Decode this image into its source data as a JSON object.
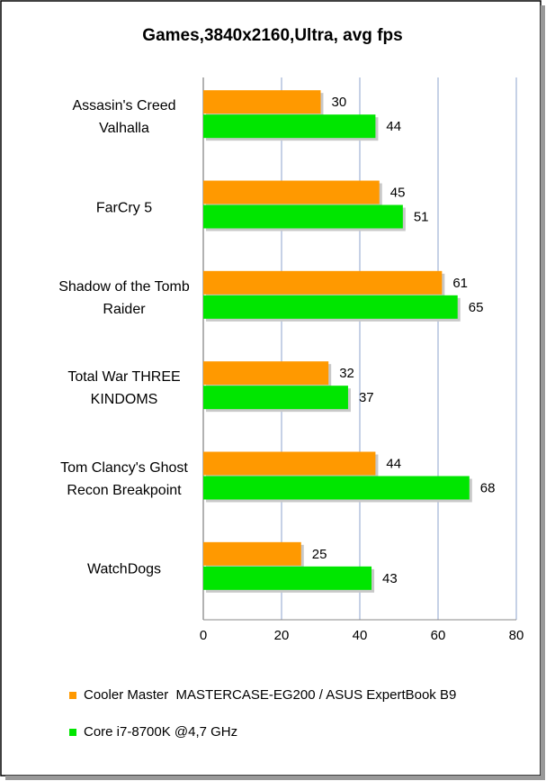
{
  "chart_data": {
    "type": "bar",
    "orientation": "horizontal",
    "title": "Games,3840x2160,Ultra, avg fps",
    "categories": [
      "Assasin's Creed\nValhalla",
      "FarCry 5",
      "Shadow of the Tomb\nRaider",
      "Total War THREE\nKINDOMS",
      "Tom Clancy's Ghost\nRecon Breakpoint",
      "WatchDogs"
    ],
    "series": [
      {
        "name": "Cooler Master  MASTERCASE-EG200 / ASUS ExpertBook B9",
        "color": "#ff9900",
        "values": [
          30,
          45,
          61,
          32,
          44,
          25
        ]
      },
      {
        "name": "Core i7-8700K @4,7 GHz",
        "color": "#00e600",
        "values": [
          44,
          51,
          65,
          37,
          68,
          43
        ]
      }
    ],
    "xlim": [
      0,
      80
    ],
    "xticks": [
      0,
      20,
      40,
      60,
      80
    ],
    "grid": true
  }
}
